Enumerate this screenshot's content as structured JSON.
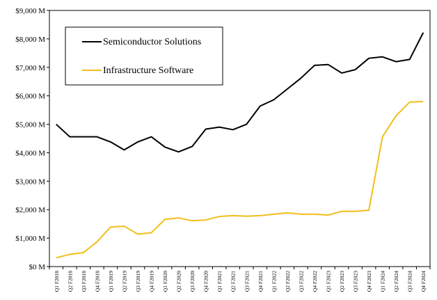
{
  "chart_data": {
    "type": "line",
    "title": "",
    "xlabel": "",
    "ylabel": "",
    "ylim": [
      0,
      9000
    ],
    "yticks": [
      "$0 M",
      "$1,000 M",
      "$2,000 M",
      "$3,000 M",
      "$4,000 M",
      "$5,000 M",
      "$6,000 M",
      "$7,000 M",
      "$8,000 M",
      "$9,000 M"
    ],
    "grid": false,
    "legend": "top-left",
    "categories": [
      "Q1 F2018",
      "Q2 F2018",
      "Q3 F2018",
      "Q4 F2018",
      "Q1 F2019",
      "Q2 F2019",
      "Q3 F2019",
      "Q4 F2019",
      "Q1 F2020",
      "Q2 F2020",
      "Q3 F2020",
      "Q4 F2020",
      "Q1 F2021",
      "Q2 F2021",
      "Q3 F2021",
      "Q4 F2021",
      "Q1 F2022",
      "Q2 F2022",
      "Q3 F2022",
      "Q4 F2022",
      "Q1 F2023",
      "Q2 F2023",
      "Q3 F2023",
      "Q4 F2023",
      "Q1 F2024",
      "Q2 F2024",
      "Q3 F2024",
      "Q4 F2024"
    ],
    "series": [
      {
        "name": "Semiconductor Solutions",
        "color": "#000000",
        "values": [
          5000,
          4560,
          4560,
          4560,
          4380,
          4100,
          4380,
          4560,
          4200,
          4030,
          4220,
          4830,
          4900,
          4810,
          5000,
          5640,
          5860,
          6240,
          6620,
          7070,
          7100,
          6800,
          6920,
          7320,
          7370,
          7200,
          7280,
          8220
        ]
      },
      {
        "name": "Infrastructure Software",
        "color": "#F2BE1A",
        "values": [
          310,
          430,
          490,
          870,
          1390,
          1420,
          1140,
          1190,
          1660,
          1710,
          1610,
          1640,
          1760,
          1790,
          1770,
          1790,
          1840,
          1890,
          1840,
          1840,
          1810,
          1940,
          1940,
          1980,
          4560,
          5300,
          5780,
          5800
        ]
      }
    ]
  }
}
